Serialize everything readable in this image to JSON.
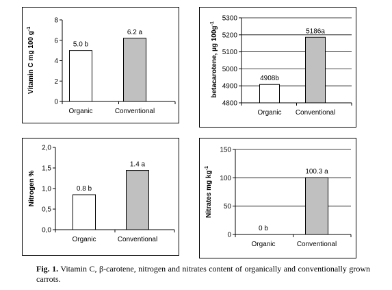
{
  "chart_data": [
    {
      "type": "bar",
      "categories": [
        "Organic",
        "Conventional"
      ],
      "values": [
        5.0,
        6.2
      ],
      "data_labels": [
        "5.0 b",
        "6.2 a"
      ],
      "ylabel": "Vitamin C mg 100 g -1",
      "ylabel_main": "Vitamin C mg 100 g",
      "ylabel_sup": "-1",
      "ylim": [
        0,
        8
      ],
      "yticks": [
        0,
        2,
        4,
        6,
        8
      ],
      "ytick_labels": [
        "0",
        "2",
        "4",
        "6",
        "8"
      ],
      "bar_colors": [
        "#ffffff",
        "#c0c0c0"
      ],
      "grid": false
    },
    {
      "type": "bar",
      "categories": [
        "Organic",
        "Conventional"
      ],
      "values": [
        4908,
        5186
      ],
      "data_labels": [
        "4908b",
        "5186a"
      ],
      "ylabel": "betacarotene, µg 100g -1",
      "ylabel_main": "betacarotene, µg 100g",
      "ylabel_sup": "-1",
      "ylim": [
        4800,
        5300
      ],
      "yticks": [
        4800,
        4900,
        5000,
        5100,
        5200,
        5300
      ],
      "ytick_labels": [
        "4800",
        "4900",
        "5000",
        "5100",
        "5200",
        "5300"
      ],
      "bar_colors": [
        "#ffffff",
        "#c0c0c0"
      ],
      "grid": true
    },
    {
      "type": "bar",
      "categories": [
        "Organic",
        "Conventional"
      ],
      "values": [
        0.85,
        1.44
      ],
      "data_labels": [
        "0.8 b",
        "1.4 a"
      ],
      "ylabel": "Nitrogen %",
      "ylabel_main": "Nitrogen  %",
      "ylabel_sup": "",
      "ylim": [
        0,
        2.0
      ],
      "yticks": [
        0,
        0.5,
        1.0,
        1.5,
        2.0
      ],
      "ytick_labels": [
        "0,0",
        "0,5",
        "1,0",
        "1,5",
        "2,0"
      ],
      "bar_colors": [
        "#ffffff",
        "#c0c0c0"
      ],
      "grid": false
    },
    {
      "type": "bar",
      "categories": [
        "Organic",
        "Conventional"
      ],
      "values": [
        0,
        100.3
      ],
      "data_labels": [
        "0 b",
        "100.3 a"
      ],
      "ylabel": "Nitrates mg kg -1",
      "ylabel_main": "Nitrates mg  kg",
      "ylabel_sup": "-1",
      "ylim": [
        0,
        150
      ],
      "yticks": [
        0,
        50,
        100,
        150
      ],
      "ytick_labels": [
        "0",
        "50",
        "100",
        "150"
      ],
      "bar_colors": [
        "#ffffff",
        "#c0c0c0"
      ],
      "grid": true
    }
  ],
  "caption": {
    "label": "Fig. 1.",
    "text": " Vitamin C, β-carotene, nitrogen and nitrates content of organically and conventionally grown carrots."
  }
}
